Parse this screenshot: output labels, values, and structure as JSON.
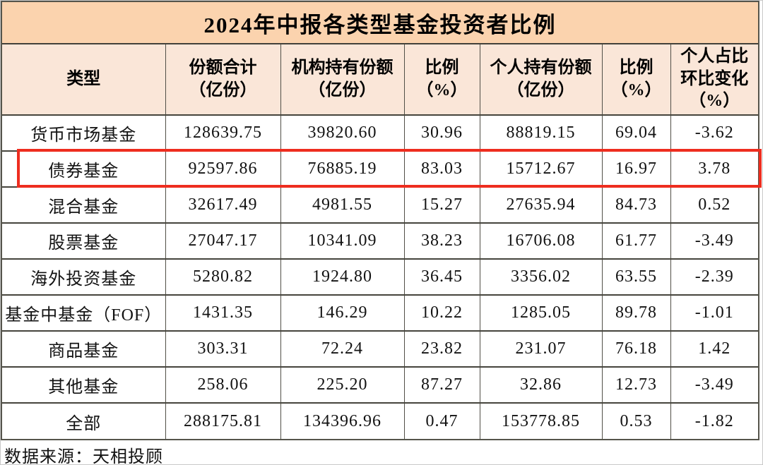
{
  "colors": {
    "title_bg": "#fbd3ae",
    "header_bg": "#fae6d8",
    "highlight_border": "#ee2d1f",
    "table_border": "#45443c"
  },
  "chart_data": {
    "type": "table",
    "title": "2024年中报各类型基金投资者比例",
    "columns": [
      "类型",
      "份额合计\n（亿份）",
      "机构持有份额\n（亿份）",
      "比例\n（%）",
      "个人持有份额\n（亿份）",
      "比例\n（%）",
      "个人占比\n环比变化\n（%）"
    ],
    "rows": [
      [
        "货币市场基金",
        "128639.75",
        "39820.60",
        "30.96",
        "88819.15",
        "69.04",
        "-3.62"
      ],
      [
        "债券基金",
        "92597.86",
        "76885.19",
        "83.03",
        "15712.67",
        "16.97",
        "3.78"
      ],
      [
        "混合基金",
        "32617.49",
        "4981.55",
        "15.27",
        "27635.94",
        "84.73",
        "0.52"
      ],
      [
        "股票基金",
        "27047.17",
        "10341.09",
        "38.23",
        "16706.08",
        "61.77",
        "-3.49"
      ],
      [
        "海外投资基金",
        "5280.82",
        "1924.80",
        "36.45",
        "3356.02",
        "63.55",
        "-2.39"
      ],
      [
        "基金中基金（FOF）",
        "1431.35",
        "146.29",
        "10.22",
        "1285.05",
        "89.78",
        "-1.01"
      ],
      [
        "商品基金",
        "303.31",
        "72.24",
        "23.82",
        "231.07",
        "76.18",
        "1.42"
      ],
      [
        "其他基金",
        "258.06",
        "225.20",
        "87.27",
        "32.86",
        "12.73",
        "-3.49"
      ],
      [
        "全部",
        "288175.81",
        "134396.96",
        "0.47",
        "153778.85",
        "0.53",
        "-1.82"
      ]
    ],
    "highlighted_row": "债券基金",
    "source": "数据来源：天相投顾"
  }
}
